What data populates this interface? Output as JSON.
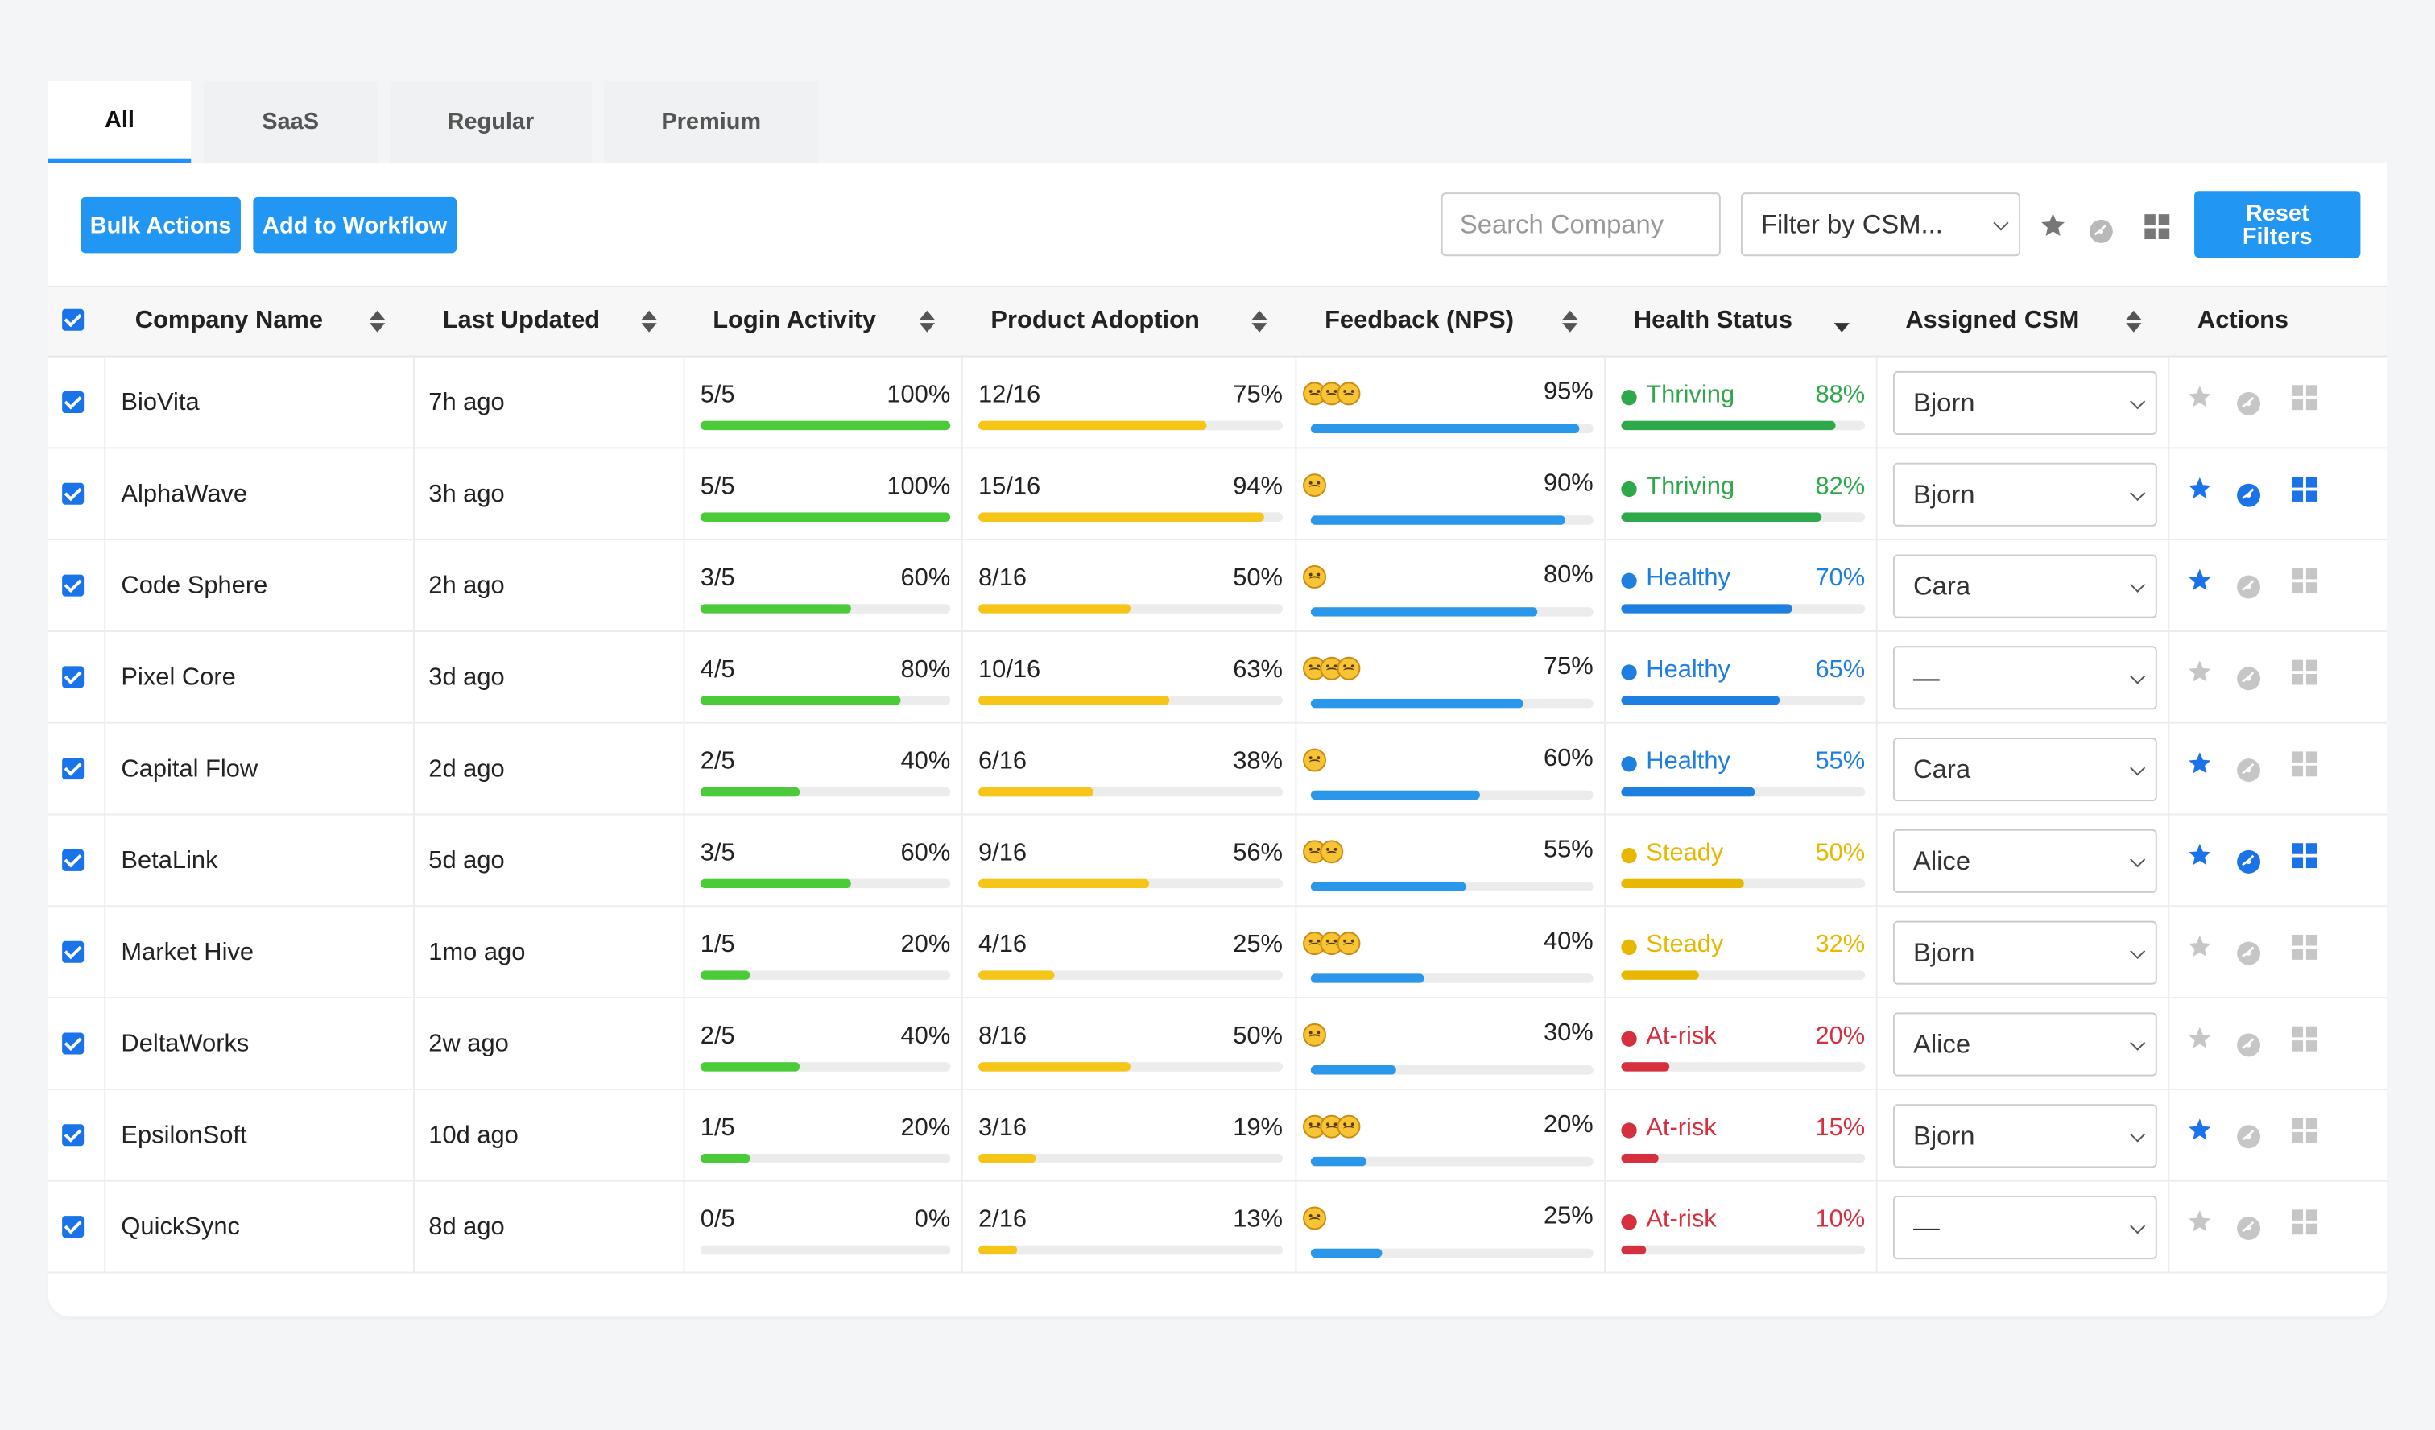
{
  "tabs": [
    "All",
    "SaaS",
    "Regular",
    "Premium"
  ],
  "toolbar": {
    "bulk_actions": "Bulk Actions",
    "add_to_workflow": "Add to Workflow",
    "search_placeholder": "Search Company",
    "filter_csm": "Filter by CSM...",
    "reset_filters": "Reset Filters"
  },
  "columns": [
    "Company Name",
    "Last Updated",
    "Login Activity",
    "Product Adoption",
    "Feedback (NPS)",
    "Health Status",
    "Assigned CSM",
    "Actions"
  ],
  "colors": {
    "accent": "#2196f3",
    "login_bar": "#4ccb3a",
    "adoption_bar": "#f5c518",
    "nps_bar": "#2b97ea",
    "thriving": "#2ea84a",
    "healthy": "#1e7fe0",
    "steady": "#e8b800",
    "at_risk": "#d62f3f",
    "icon_muted": "#c6c6c6",
    "icon_active": "#1a73e8"
  },
  "rows": [
    {
      "company": "BioVita",
      "updated": "7h ago",
      "login": "5/5",
      "login_pct": "100%",
      "adoption": "12/16",
      "adoption_pct": "75%",
      "nps_emojis": 3,
      "nps_pct": "95%",
      "status": "Thriving",
      "health_pct": "88%",
      "csm": "Bjorn",
      "star": false,
      "gauge": false,
      "grid": false
    },
    {
      "company": "AlphaWave",
      "updated": "3h ago",
      "login": "5/5",
      "login_pct": "100%",
      "adoption": "15/16",
      "adoption_pct": "94%",
      "nps_emojis": 1,
      "nps_pct": "90%",
      "status": "Thriving",
      "health_pct": "82%",
      "csm": "Bjorn",
      "star": true,
      "gauge": true,
      "grid": true
    },
    {
      "company": "Code Sphere",
      "updated": "2h ago",
      "login": "3/5",
      "login_pct": "60%",
      "adoption": "8/16",
      "adoption_pct": "50%",
      "nps_emojis": 1,
      "nps_pct": "80%",
      "status": "Healthy",
      "health_pct": "70%",
      "csm": "Cara",
      "star": true,
      "gauge": false,
      "grid": false
    },
    {
      "company": "Pixel Core",
      "updated": "3d ago",
      "login": "4/5",
      "login_pct": "80%",
      "adoption": "10/16",
      "adoption_pct": "63%",
      "nps_emojis": 3,
      "nps_pct": "75%",
      "status": "Healthy",
      "health_pct": "65%",
      "csm": "—",
      "star": false,
      "gauge": false,
      "grid": false
    },
    {
      "company": "Capital Flow",
      "updated": "2d ago",
      "login": "2/5",
      "login_pct": "40%",
      "adoption": "6/16",
      "adoption_pct": "38%",
      "nps_emojis": 1,
      "nps_pct": "60%",
      "status": "Healthy",
      "health_pct": "55%",
      "csm": "Cara",
      "star": true,
      "gauge": false,
      "grid": false
    },
    {
      "company": "BetaLink",
      "updated": "5d ago",
      "login": "3/5",
      "login_pct": "60%",
      "adoption": "9/16",
      "adoption_pct": "56%",
      "nps_emojis": 2,
      "nps_pct": "55%",
      "status": "Steady",
      "health_pct": "50%",
      "csm": "Alice",
      "star": true,
      "gauge": true,
      "grid": true
    },
    {
      "company": "Market Hive",
      "updated": "1mo ago",
      "login": "1/5",
      "login_pct": "20%",
      "adoption": "4/16",
      "adoption_pct": "25%",
      "nps_emojis": 3,
      "nps_pct": "40%",
      "status": "Steady",
      "health_pct": "32%",
      "csm": "Bjorn",
      "star": false,
      "gauge": false,
      "grid": false
    },
    {
      "company": "DeltaWorks",
      "updated": "2w ago",
      "login": "2/5",
      "login_pct": "40%",
      "adoption": "8/16",
      "adoption_pct": "50%",
      "nps_emojis": 1,
      "nps_pct": "30%",
      "status": "At-risk",
      "health_pct": "20%",
      "csm": "Alice",
      "star": false,
      "gauge": false,
      "grid": false
    },
    {
      "company": "EpsilonSoft",
      "updated": "10d ago",
      "login": "1/5",
      "login_pct": "20%",
      "adoption": "3/16",
      "adoption_pct": "19%",
      "nps_emojis": 3,
      "nps_pct": "20%",
      "status": "At-risk",
      "health_pct": "15%",
      "csm": "Bjorn",
      "star": true,
      "gauge": false,
      "grid": false
    },
    {
      "company": "QuickSync",
      "updated": "8d ago",
      "login": "0/5",
      "login_pct": "0%",
      "adoption": "2/16",
      "adoption_pct": "13%",
      "nps_emojis": 1,
      "nps_pct": "25%",
      "status": "At-risk",
      "health_pct": "10%",
      "csm": "—",
      "star": false,
      "gauge": false,
      "grid": false
    }
  ]
}
